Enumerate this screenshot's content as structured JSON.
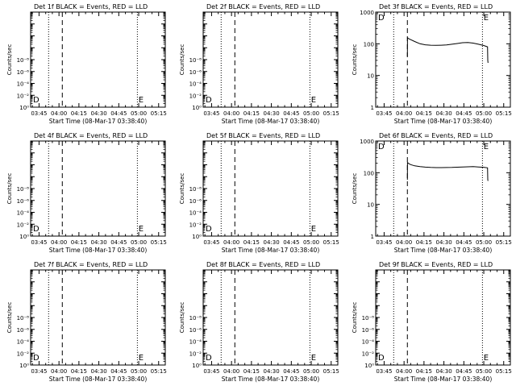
{
  "figure": {
    "xlabel": "Start Time (08-Mar-17 03:38:40)",
    "ylabel": "Counts/sec",
    "time_ticks": [
      "03:45",
      "04:00",
      "04:15",
      "04:30",
      "04:45",
      "05:00",
      "05:15"
    ],
    "tick_minutes": [
      225,
      240,
      255,
      270,
      285,
      300,
      315
    ]
  },
  "chart_data": [
    {
      "type": "line",
      "title": "Det 1f BLACK = Events, RED = LLD",
      "xlabel": "Start Time (08-Mar-17 03:38:40)",
      "ylabel": "Counts/sec",
      "xlim": [
        218.67,
        320
      ],
      "ylim": [
        1,
        100000000
      ],
      "yscale": "log",
      "yticks": [
        "10⁰",
        "10⁻²",
        "10⁻⁴",
        "10⁻⁶",
        "10⁻⁸"
      ],
      "markers": [
        {
          "label": "D",
          "time_min": 220.5
        },
        {
          "label": "E",
          "time_min": 299.8
        }
      ],
      "dotted_lines_min": [
        232.2,
        299.0
      ],
      "dashed_lines_min": [
        242.5
      ],
      "series": []
    },
    {
      "type": "line",
      "title": "Det 2f BLACK = Events, RED = LLD",
      "xlabel": "Start Time (08-Mar-17 03:38:40)",
      "ylabel": "Counts/sec",
      "xlim": [
        218.67,
        320
      ],
      "ylim": [
        1,
        100000000
      ],
      "yscale": "log",
      "yticks": [
        "10⁰",
        "10⁻²",
        "10⁻⁴",
        "10⁻⁶",
        "10⁻⁸"
      ],
      "markers": [
        {
          "label": "D",
          "time_min": 220.5
        },
        {
          "label": "E",
          "time_min": 299.8
        }
      ],
      "dotted_lines_min": [
        232.2,
        299.0
      ],
      "dashed_lines_min": [
        242.5
      ],
      "series": []
    },
    {
      "type": "line",
      "title": "Det 3f BLACK = Events, RED = LLD",
      "xlabel": "Start Time (08-Mar-17 03:38:40)",
      "ylabel": "Counts/sec",
      "xlim": [
        218.67,
        320
      ],
      "ylim": [
        1,
        1000
      ],
      "yscale": "log",
      "yticks": [
        "1",
        "10",
        "100",
        "1000"
      ],
      "markers": [
        {
          "label": "D",
          "time_min": 220.5
        },
        {
          "label": "E",
          "time_min": 299.8
        }
      ],
      "dotted_lines_min": [
        232.2,
        299.0
      ],
      "dashed_lines_min": [
        242.5
      ],
      "series": [
        {
          "x": [
            242.5,
            242.6,
            243.5,
            245,
            248,
            252,
            256,
            260,
            264,
            268,
            272,
            276,
            280,
            284,
            288,
            292,
            296,
            300,
            302.8,
            303,
            303.2
          ],
          "y": [
            40,
            155,
            145,
            135,
            118,
            100,
            93,
            90,
            89,
            90,
            92,
            97,
            102,
            108,
            110,
            105,
            97,
            88,
            80,
            30,
            25
          ]
        }
      ]
    },
    {
      "type": "line",
      "title": "Det 4f BLACK = Events, RED = LLD",
      "xlabel": "Start Time (08-Mar-17 03:38:40)",
      "ylabel": "Counts/sec",
      "xlim": [
        218.67,
        320
      ],
      "ylim": [
        1,
        100000000
      ],
      "yscale": "log",
      "yticks": [
        "10⁰",
        "10⁻²",
        "10⁻⁴",
        "10⁻⁶",
        "10⁻⁸"
      ],
      "markers": [
        {
          "label": "D",
          "time_min": 220.5
        },
        {
          "label": "E",
          "time_min": 299.8
        }
      ],
      "dotted_lines_min": [
        232.2,
        299.0
      ],
      "dashed_lines_min": [
        242.5
      ],
      "series": []
    },
    {
      "type": "line",
      "title": "Det 5f BLACK = Events, RED = LLD",
      "xlabel": "Start Time (08-Mar-17 03:38:40)",
      "ylabel": "Counts/sec",
      "xlim": [
        218.67,
        320
      ],
      "ylim": [
        1,
        100000000
      ],
      "yscale": "log",
      "yticks": [
        "10⁰",
        "10⁻²",
        "10⁻⁴",
        "10⁻⁶",
        "10⁻⁸"
      ],
      "markers": [
        {
          "label": "D",
          "time_min": 220.5
        },
        {
          "label": "E",
          "time_min": 299.8
        }
      ],
      "dotted_lines_min": [
        232.2,
        299.0
      ],
      "dashed_lines_min": [
        242.5
      ],
      "series": []
    },
    {
      "type": "line",
      "title": "Det 6f BLACK = Events, RED = LLD",
      "xlabel": "Start Time (08-Mar-17 03:38:40)",
      "ylabel": "Counts/sec",
      "xlim": [
        218.67,
        320
      ],
      "ylim": [
        1,
        1000
      ],
      "yscale": "log",
      "yticks": [
        "1",
        "10",
        "100",
        "1000"
      ],
      "markers": [
        {
          "label": "D",
          "time_min": 220.5
        },
        {
          "label": "E",
          "time_min": 299.8
        }
      ],
      "dotted_lines_min": [
        232.2,
        299.0
      ],
      "dashed_lines_min": [
        242.5
      ],
      "series": [
        {
          "x": [
            242.5,
            242.6,
            243.5,
            245,
            248,
            252,
            256,
            260,
            264,
            268,
            272,
            276,
            280,
            284,
            288,
            292,
            296,
            300,
            302.8,
            303,
            303.2
          ],
          "y": [
            60,
            210,
            195,
            180,
            165,
            155,
            150,
            147,
            145,
            145,
            146,
            147,
            149,
            152,
            154,
            155,
            152,
            148,
            142,
            60,
            55
          ]
        }
      ]
    },
    {
      "type": "line",
      "title": "Det 7f BLACK = Events, RED = LLD",
      "xlabel": "Start Time (08-Mar-17 03:38:40)",
      "ylabel": "Counts/sec",
      "xlim": [
        218.67,
        320
      ],
      "ylim": [
        1,
        100000000
      ],
      "yscale": "log",
      "yticks": [
        "10⁰",
        "10⁻²",
        "10⁻⁴",
        "10⁻⁶",
        "10⁻⁸"
      ],
      "markers": [
        {
          "label": "D",
          "time_min": 220.5
        },
        {
          "label": "E",
          "time_min": 299.8
        }
      ],
      "dotted_lines_min": [
        232.2,
        299.0
      ],
      "dashed_lines_min": [
        242.5
      ],
      "series": []
    },
    {
      "type": "line",
      "title": "Det 8f BLACK = Events, RED = LLD",
      "xlabel": "Start Time (08-Mar-17 03:38:40)",
      "ylabel": "Counts/sec",
      "xlim": [
        218.67,
        320
      ],
      "ylim": [
        1,
        100000000
      ],
      "yscale": "log",
      "yticks": [
        "10⁰",
        "10⁻²",
        "10⁻⁴",
        "10⁻⁶",
        "10⁻⁸"
      ],
      "markers": [
        {
          "label": "D",
          "time_min": 220.5
        },
        {
          "label": "E",
          "time_min": 299.8
        }
      ],
      "dotted_lines_min": [
        232.2,
        299.0
      ],
      "dashed_lines_min": [
        242.5
      ],
      "series": []
    },
    {
      "type": "line",
      "title": "Det 9f BLACK = Events, RED = LLD",
      "xlabel": "Start Time (08-Mar-17 03:38:40)",
      "ylabel": "Counts/sec",
      "xlim": [
        218.67,
        320
      ],
      "ylim": [
        1,
        100000000
      ],
      "yscale": "log",
      "yticks": [
        "10⁰",
        "10⁻²",
        "10⁻⁴",
        "10⁻⁶",
        "10⁻⁸"
      ],
      "markers": [
        {
          "label": "D",
          "time_min": 220.5
        },
        {
          "label": "E",
          "time_min": 299.8
        }
      ],
      "dotted_lines_min": [
        232.2,
        299.0
      ],
      "dashed_lines_min": [
        242.5
      ],
      "series": []
    }
  ]
}
